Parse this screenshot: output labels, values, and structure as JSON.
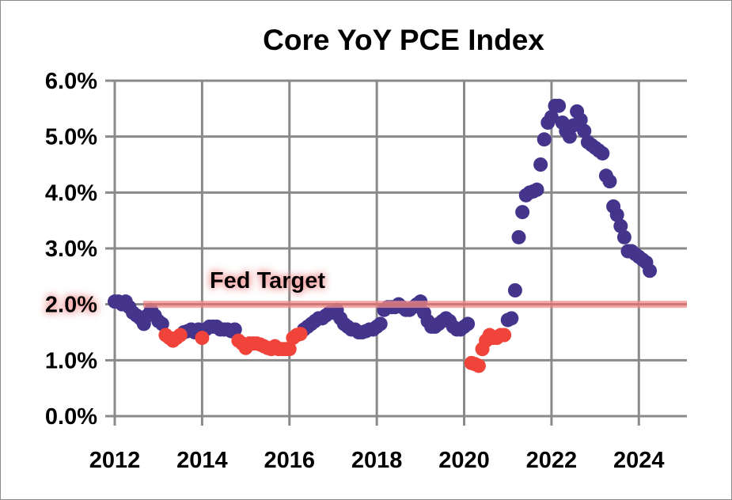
{
  "chart_data": {
    "type": "scatter",
    "title": "Core YoY PCE Index",
    "xlabel": "",
    "ylabel": "",
    "xlim": [
      2012,
      2025.1
    ],
    "ylim": [
      0,
      6
    ],
    "x_ticks": [
      "2012",
      "2014",
      "2016",
      "2018",
      "2020",
      "2022",
      "2024"
    ],
    "y_ticks": [
      "0.0%",
      "1.0%",
      "2.0%",
      "3.0%",
      "4.0%",
      "5.0%",
      "6.0%"
    ],
    "grid": true,
    "legend": "none",
    "reference_line": {
      "label": "Fed Target",
      "value": 2.0,
      "color": "#f08c8c"
    },
    "series": [
      {
        "color": "#45348c",
        "points": [
          [
            "2012-01",
            2.05
          ],
          [
            "2012-02",
            2.05
          ],
          [
            "2012-03",
            2.0
          ],
          [
            "2012-04",
            2.05
          ],
          [
            "2012-05",
            1.95
          ],
          [
            "2012-06",
            1.85
          ],
          [
            "2012-07",
            1.8
          ],
          [
            "2012-08",
            1.75
          ],
          [
            "2012-09",
            1.65
          ],
          [
            "2012-10",
            1.8
          ],
          [
            "2012-11",
            1.9
          ],
          [
            "2012-12",
            1.8
          ],
          [
            "2013-01",
            1.7
          ],
          [
            "2013-02",
            1.65
          ],
          [
            "2013-08",
            1.5
          ],
          [
            "2013-09",
            1.52
          ],
          [
            "2013-10",
            1.55
          ],
          [
            "2013-11",
            1.5
          ],
          [
            "2013-12",
            1.55
          ],
          [
            "2014-02",
            1.55
          ],
          [
            "2014-03",
            1.6
          ],
          [
            "2014-04",
            1.6
          ],
          [
            "2014-05",
            1.6
          ],
          [
            "2014-06",
            1.55
          ],
          [
            "2014-07",
            1.55
          ],
          [
            "2014-08",
            1.55
          ],
          [
            "2014-09",
            1.52
          ],
          [
            "2014-10",
            1.55
          ],
          [
            "2016-05",
            1.55
          ],
          [
            "2016-06",
            1.6
          ],
          [
            "2016-07",
            1.65
          ],
          [
            "2016-08",
            1.7
          ],
          [
            "2016-09",
            1.75
          ],
          [
            "2016-10",
            1.75
          ],
          [
            "2016-11",
            1.8
          ],
          [
            "2016-12",
            1.85
          ],
          [
            "2017-01",
            1.85
          ],
          [
            "2017-02",
            1.9
          ],
          [
            "2017-03",
            1.75
          ],
          [
            "2017-04",
            1.65
          ],
          [
            "2017-05",
            1.6
          ],
          [
            "2017-06",
            1.55
          ],
          [
            "2017-07",
            1.55
          ],
          [
            "2017-08",
            1.5
          ],
          [
            "2017-09",
            1.5
          ],
          [
            "2017-10",
            1.52
          ],
          [
            "2017-11",
            1.55
          ],
          [
            "2017-12",
            1.55
          ],
          [
            "2018-01",
            1.6
          ],
          [
            "2018-02",
            1.65
          ],
          [
            "2018-03",
            1.9
          ],
          [
            "2018-04",
            1.95
          ],
          [
            "2018-05",
            1.95
          ],
          [
            "2018-06",
            1.95
          ],
          [
            "2018-07",
            2.0
          ],
          [
            "2018-08",
            1.95
          ],
          [
            "2018-09",
            1.9
          ],
          [
            "2018-10",
            1.9
          ],
          [
            "2018-11",
            1.95
          ],
          [
            "2018-12",
            2.0
          ],
          [
            "2019-01",
            2.05
          ],
          [
            "2019-02",
            1.85
          ],
          [
            "2019-03",
            1.7
          ],
          [
            "2019-04",
            1.6
          ],
          [
            "2019-05",
            1.6
          ],
          [
            "2019-06",
            1.65
          ],
          [
            "2019-07",
            1.7
          ],
          [
            "2019-08",
            1.75
          ],
          [
            "2019-09",
            1.7
          ],
          [
            "2019-10",
            1.6
          ],
          [
            "2019-11",
            1.55
          ],
          [
            "2019-12",
            1.55
          ],
          [
            "2020-01",
            1.6
          ],
          [
            "2020-02",
            1.65
          ],
          [
            "2021-01",
            1.72
          ],
          [
            "2021-02",
            1.75
          ],
          [
            "2021-03",
            2.25
          ],
          [
            "2021-04",
            3.2
          ],
          [
            "2021-05",
            3.65
          ],
          [
            "2021-06",
            3.95
          ],
          [
            "2021-07",
            4.0
          ],
          [
            "2021-08",
            4.02
          ],
          [
            "2021-09",
            4.05
          ],
          [
            "2021-10",
            4.5
          ],
          [
            "2021-11",
            4.95
          ],
          [
            "2021-12",
            5.25
          ],
          [
            "2022-01",
            5.35
          ],
          [
            "2022-02",
            5.55
          ],
          [
            "2022-03",
            5.55
          ],
          [
            "2022-04",
            5.25
          ],
          [
            "2022-05",
            5.1
          ],
          [
            "2022-06",
            5.0
          ],
          [
            "2022-07",
            5.2
          ],
          [
            "2022-08",
            5.45
          ],
          [
            "2022-09",
            5.3
          ],
          [
            "2022-10",
            5.1
          ],
          [
            "2022-11",
            4.9
          ],
          [
            "2022-12",
            4.85
          ],
          [
            "2023-01",
            4.8
          ],
          [
            "2023-02",
            4.75
          ],
          [
            "2023-03",
            4.7
          ],
          [
            "2023-04",
            4.3
          ],
          [
            "2023-05",
            4.2
          ],
          [
            "2023-06",
            3.75
          ],
          [
            "2023-07",
            3.6
          ],
          [
            "2023-08",
            3.4
          ],
          [
            "2023-09",
            3.2
          ],
          [
            "2023-10",
            2.95
          ],
          [
            "2023-11",
            2.95
          ],
          [
            "2023-12",
            2.9
          ],
          [
            "2024-01",
            2.85
          ],
          [
            "2024-02",
            2.8
          ],
          [
            "2024-03",
            2.75
          ],
          [
            "2024-04",
            2.6
          ]
        ]
      },
      {
        "color": "#f0433a",
        "points": [
          [
            "2013-03",
            1.45
          ],
          [
            "2013-04",
            1.4
          ],
          [
            "2013-05",
            1.35
          ],
          [
            "2013-06",
            1.4
          ],
          [
            "2013-07",
            1.45
          ],
          [
            "2014-01",
            1.4
          ],
          [
            "2014-11",
            1.35
          ],
          [
            "2014-12",
            1.3
          ],
          [
            "2015-01",
            1.22
          ],
          [
            "2015-02",
            1.3
          ],
          [
            "2015-03",
            1.3
          ],
          [
            "2015-04",
            1.3
          ],
          [
            "2015-05",
            1.28
          ],
          [
            "2015-06",
            1.25
          ],
          [
            "2015-07",
            1.22
          ],
          [
            "2015-08",
            1.2
          ],
          [
            "2015-09",
            1.25
          ],
          [
            "2015-10",
            1.2
          ],
          [
            "2015-11",
            1.2
          ],
          [
            "2015-12",
            1.2
          ],
          [
            "2016-01",
            1.2
          ],
          [
            "2016-02",
            1.4
          ],
          [
            "2016-03",
            1.45
          ],
          [
            "2016-04",
            1.47
          ],
          [
            "2020-03",
            0.95
          ],
          [
            "2020-04",
            0.93
          ],
          [
            "2020-05",
            0.9
          ],
          [
            "2020-06",
            1.2
          ],
          [
            "2020-07",
            1.35
          ],
          [
            "2020-08",
            1.45
          ],
          [
            "2020-09",
            1.4
          ],
          [
            "2020-10",
            1.4
          ],
          [
            "2020-11",
            1.45
          ],
          [
            "2020-12",
            1.45
          ]
        ]
      }
    ]
  }
}
